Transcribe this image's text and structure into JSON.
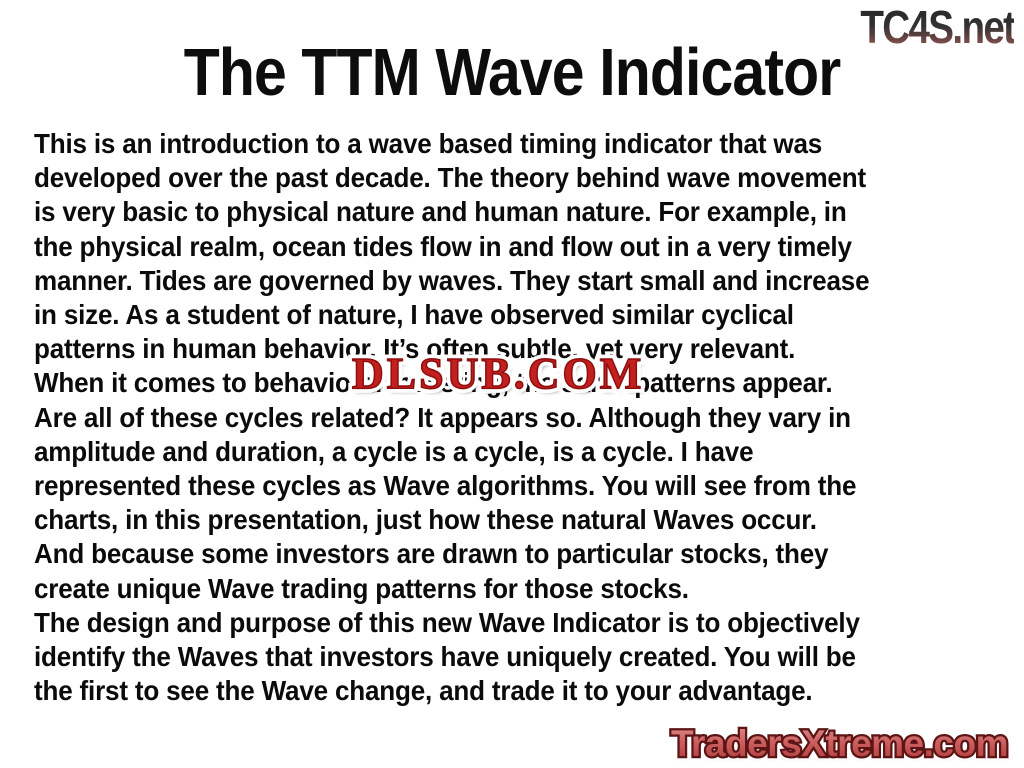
{
  "slide": {
    "title": "The TTM Wave Indicator",
    "text_color": "#0b0b0b",
    "body_lines": [
      "This is an introduction to a wave based timing indicator that was",
      "developed over the past decade. The theory behind wave movement",
      "is very basic to physical nature and human nature. For example, in",
      "the physical realm, ocean tides flow in and flow out in a very timely",
      "manner. Tides are governed by waves. They start small and increase",
      "in size. As a student of nature, I have observed similar cyclical",
      "patterns in human behavior. It’s often subtle, yet very relevant.",
      "When it comes to behavioral investing, the same patterns appear.",
      "Are all of these cycles related? It appears so. Although they vary in",
      "amplitude and duration, a cycle is a cycle, is a cycle. I have",
      "represented these cycles as Wave algorithms. You will see from the",
      "charts, in this presentation, just how these natural Waves occur.",
      "And because some investors are drawn to particular stocks, they",
      "create unique Wave trading patterns for those stocks.",
      "The design and purpose of this new Wave Indicator is to objectively",
      "identify the Waves that investors have uniquely created. You will be",
      "the first to see the Wave change, and trade it to your advantage."
    ]
  },
  "watermarks": {
    "top_right": {
      "text": "TC4S.net",
      "color_top": "#262626",
      "color_bottom": "#9a6a62"
    },
    "center": {
      "text": "DLSUB.COM",
      "fill": "#c41f1f",
      "outline": "#ffffff"
    },
    "bottom_right": {
      "text": "TradersXtreme.com",
      "fill_top": "#dd8b8b",
      "fill_bottom": "#b13c3c",
      "outline": "#5c1414",
      "glow": "#ffffff"
    }
  }
}
